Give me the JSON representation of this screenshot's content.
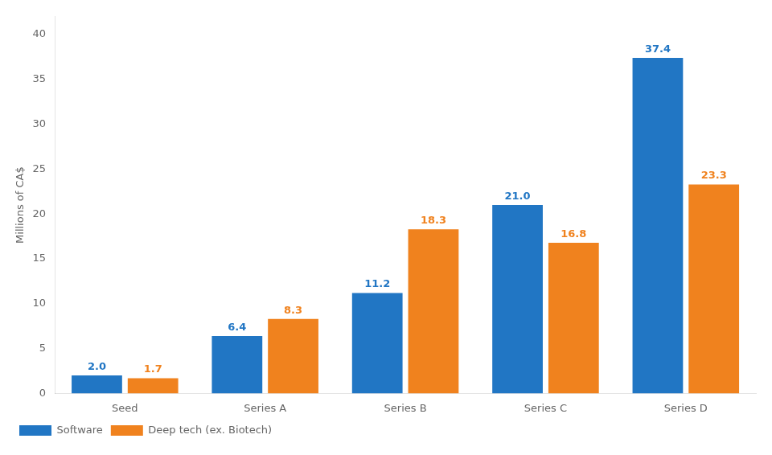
{
  "chart_data": {
    "type": "bar",
    "ylabel": "Millions of CA$",
    "categories": [
      "Seed",
      "Series A",
      "Series B",
      "Series C",
      "Series D"
    ],
    "series": [
      {
        "name": "Software",
        "color": "#2176C4",
        "values": [
          2.0,
          6.4,
          11.2,
          21.0,
          37.4
        ],
        "value_labels": [
          "2.0",
          "6.4",
          "11.2",
          "21.0",
          "37.4"
        ]
      },
      {
        "name": "Deep tech (ex. Biotech)",
        "color": "#F0821E",
        "values": [
          1.7,
          8.3,
          18.3,
          16.8,
          23.3
        ],
        "value_labels": [
          "1.7",
          "8.3",
          "18.3",
          "16.8",
          "23.3"
        ]
      }
    ],
    "ylim": [
      0,
      42
    ],
    "yticks": [
      0,
      5,
      10,
      15,
      20,
      25,
      30,
      35,
      40
    ],
    "grid": false,
    "legend": "lower left",
    "data_labels": true
  }
}
